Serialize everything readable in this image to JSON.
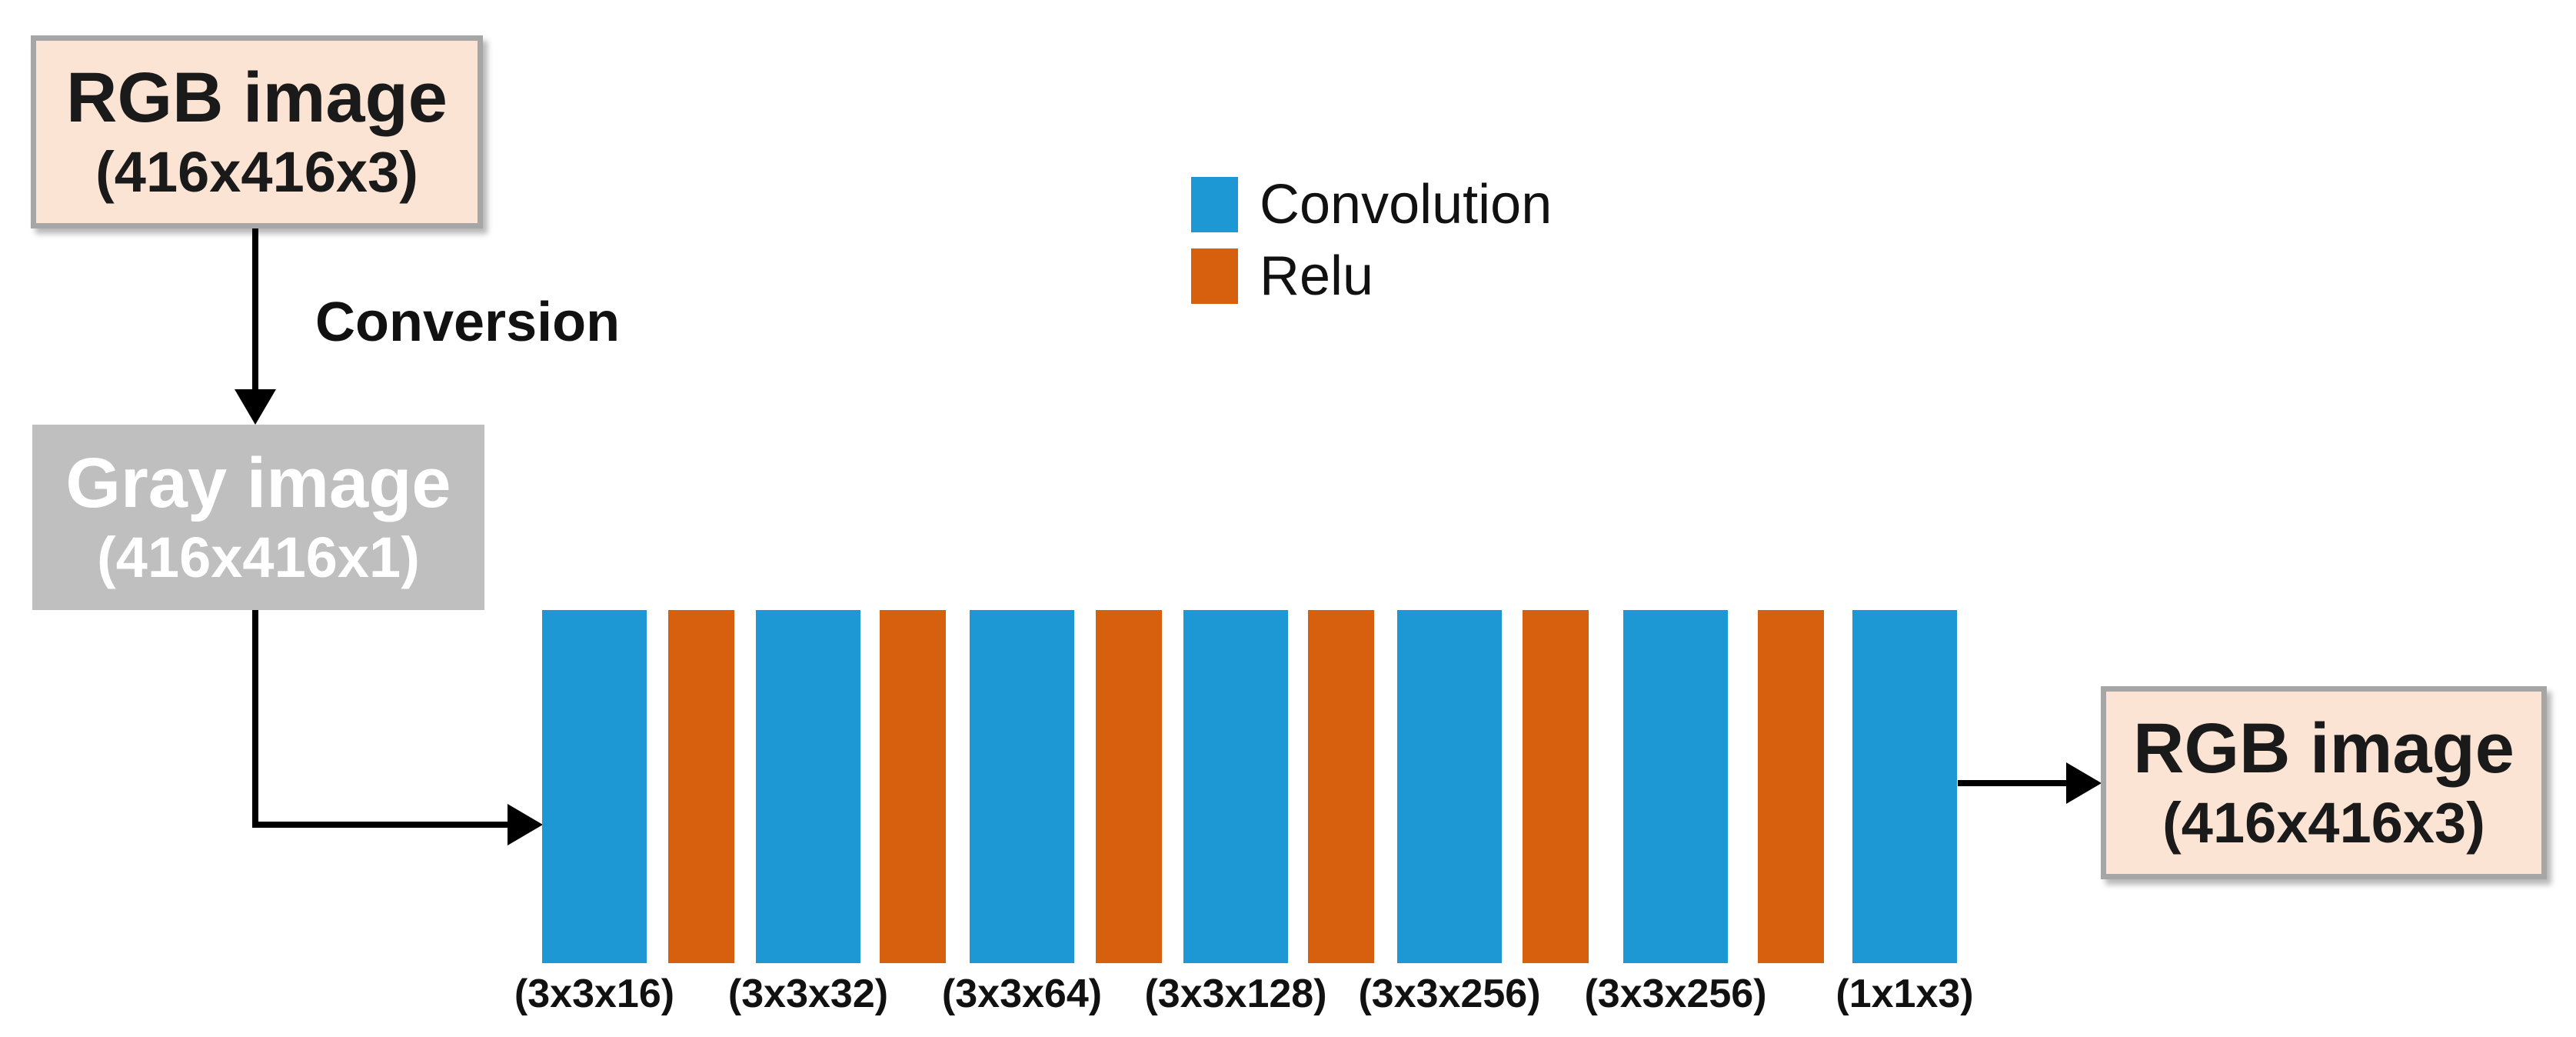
{
  "colors": {
    "convolution": "#1E98D5",
    "relu": "#D6600D",
    "io_box_fill": "#FCE4D4",
    "io_box_border": "#A6A6A6",
    "gray_box_fill": "#BFBFBF",
    "arrow": "#000000"
  },
  "input_box": {
    "title": "RGB image",
    "subtitle": "(416x416x3)"
  },
  "conversion_arrow_label": "Conversion",
  "gray_box": {
    "title": "Gray image",
    "subtitle": "(416x416x1)"
  },
  "output_box": {
    "title": "RGB image",
    "subtitle": "(416x416x3)"
  },
  "legend": {
    "items": [
      {
        "label": "Convolution",
        "color_key": "convolution"
      },
      {
        "label": "Relu",
        "color_key": "relu"
      }
    ]
  },
  "network": {
    "layers": [
      {
        "type": "convolution",
        "kernel": "(3x3x16)"
      },
      {
        "type": "relu"
      },
      {
        "type": "convolution",
        "kernel": "(3x3x32)"
      },
      {
        "type": "relu"
      },
      {
        "type": "convolution",
        "kernel": "(3x3x64)"
      },
      {
        "type": "relu"
      },
      {
        "type": "convolution",
        "kernel": "(3x3x128)"
      },
      {
        "type": "relu"
      },
      {
        "type": "convolution",
        "kernel": "(3x3x256)"
      },
      {
        "type": "relu"
      },
      {
        "type": "convolution",
        "kernel": "(3x3x256)"
      },
      {
        "type": "relu"
      },
      {
        "type": "convolution",
        "kernel": "(1x1x3)"
      }
    ]
  }
}
